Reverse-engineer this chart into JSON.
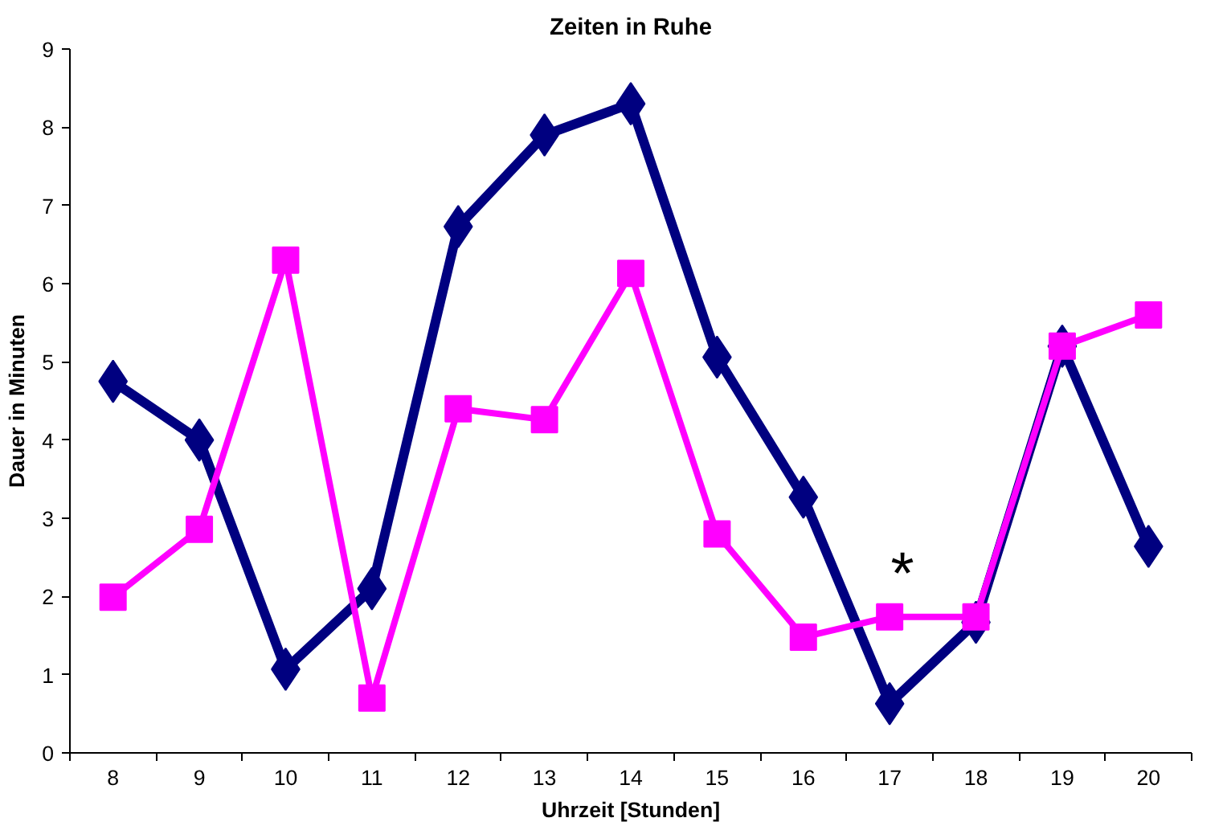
{
  "chart_data": {
    "type": "line",
    "title": "Zeiten in Ruhe",
    "xlabel": "Uhrzeit [Stunden]",
    "ylabel": "Dauer in Minuten",
    "categories": [
      "8",
      "9",
      "10",
      "11",
      "12",
      "13",
      "14",
      "15",
      "16",
      "17",
      "18",
      "19",
      "20"
    ],
    "series": [
      {
        "color": "#000080",
        "marker": "diamond",
        "values": [
          4.75,
          4.0,
          1.07,
          2.1,
          6.73,
          7.9,
          8.3,
          5.06,
          3.27,
          0.63,
          1.67,
          5.2,
          2.64
        ]
      },
      {
        "color": "#ff00ff",
        "marker": "square",
        "values": [
          1.99,
          2.86,
          6.3,
          0.7,
          4.4,
          4.26,
          6.13,
          2.8,
          1.48,
          1.74,
          1.74,
          5.2,
          5.6
        ]
      }
    ],
    "ylim": [
      0,
      9
    ],
    "yticks": [
      0,
      1,
      2,
      3,
      4,
      5,
      6,
      7,
      8,
      9
    ],
    "grid": false,
    "line_style": "solid",
    "annotations": [
      "*"
    ]
  }
}
